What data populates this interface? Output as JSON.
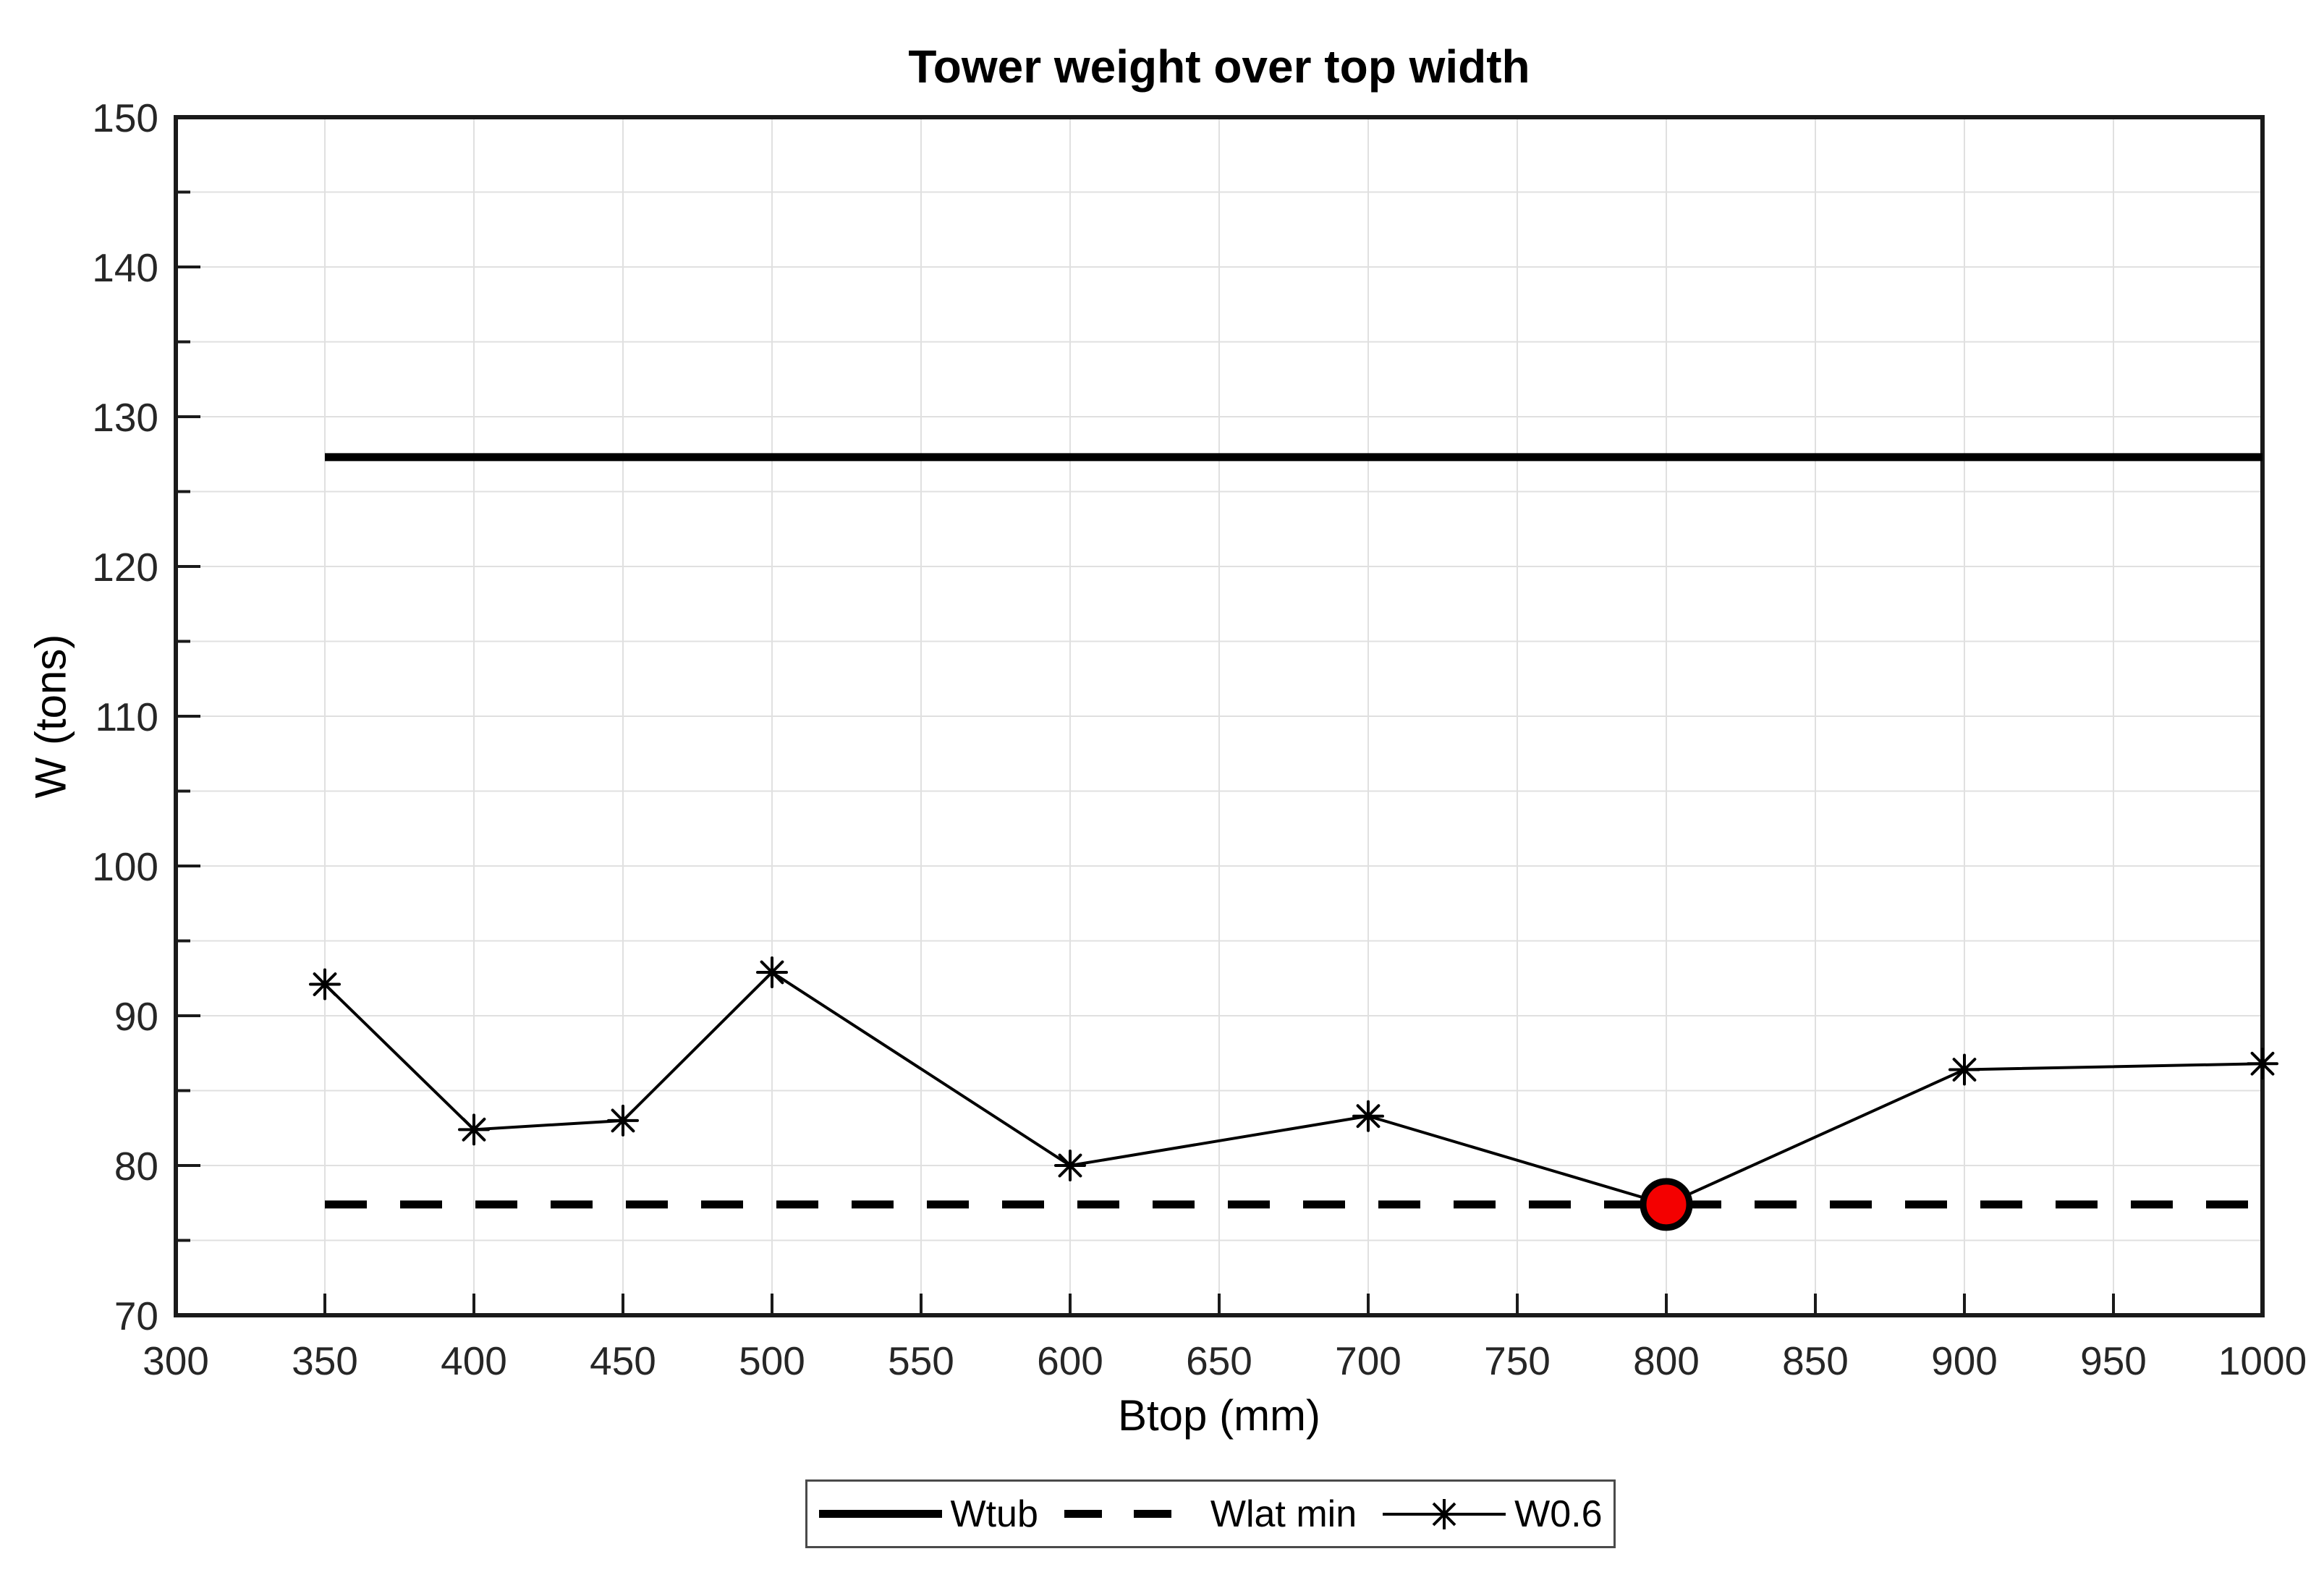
{
  "figure": {
    "title": "Tower weight over top width",
    "background": "#ffffff"
  },
  "chart_data": {
    "type": "line",
    "title": "Tower weight over top width",
    "xlabel": "Btop (mm)",
    "ylabel": "W (tons)",
    "xlim": [
      300,
      1000
    ],
    "ylim": [
      70,
      150
    ],
    "x_tick_labels": [
      300,
      350,
      400,
      450,
      500,
      550,
      600,
      650,
      700,
      750,
      800,
      850,
      900,
      950,
      1000
    ],
    "y_tick_labels": [
      70,
      80,
      90,
      100,
      110,
      120,
      130,
      140,
      150
    ],
    "y_minor_tick_step": 5,
    "grid": {
      "on": true,
      "x_step": 50,
      "y_step": 5
    },
    "series": [
      {
        "name": "Wtub",
        "kind": "hline",
        "style": "solid",
        "weight": "thick",
        "color": "#000000",
        "x_range": [
          350,
          1000
        ],
        "value": 127.3
      },
      {
        "name": "Wlat min",
        "kind": "hline",
        "style": "dashed",
        "weight": "thick",
        "color": "#000000",
        "x_range": [
          350,
          1000
        ],
        "value": 77.4
      },
      {
        "name": "W0.6",
        "kind": "line",
        "style": "solid",
        "weight": "thin",
        "marker": "asterisk",
        "color": "#000000",
        "x": [
          350,
          400,
          450,
          500,
          600,
          700,
          800,
          900,
          1000
        ],
        "y": [
          92.1,
          82.4,
          83.0,
          92.9,
          80.0,
          83.3,
          77.4,
          86.4,
          86.8
        ]
      }
    ],
    "highlight_point": {
      "series": "W0.6",
      "x": 800,
      "y": 77.4,
      "marker": "circle",
      "fill": "#f40000",
      "edge_color": "#000000"
    },
    "legend": {
      "position": "below-chart",
      "orientation": "horizontal",
      "entries": [
        {
          "label": "Wtub",
          "sample": "thick-solid-line"
        },
        {
          "label": "Wlat min",
          "sample": "thick-dashed-line"
        },
        {
          "label": "W0.6",
          "sample": "thin-line-with-asterisk-marker"
        }
      ]
    },
    "colors": {
      "axis": "#1a1a1a",
      "grid": "#e0e0e0",
      "tick_label": "#262626",
      "line": "#000000",
      "highlight_fill": "#f40000",
      "background": "#ffffff"
    }
  }
}
